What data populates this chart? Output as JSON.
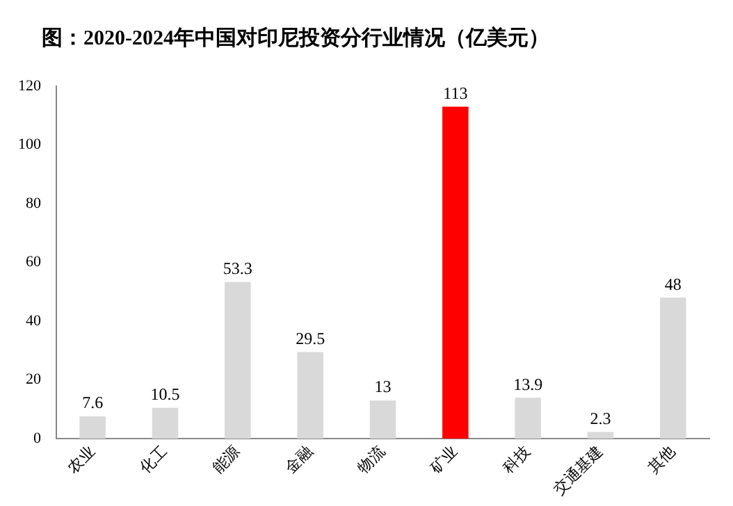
{
  "chart_data": {
    "type": "bar",
    "title": "图：2020-2024年中国对印尼投资分行业情况（亿美元）",
    "categories": [
      "农业",
      "化工",
      "能源",
      "金融",
      "物流",
      "矿业",
      "科技",
      "交通基建",
      "其他"
    ],
    "values": [
      7.6,
      10.5,
      53.3,
      29.5,
      13,
      113,
      13.9,
      2.3,
      48
    ],
    "colors": [
      "#d9d9d9",
      "#d9d9d9",
      "#d9d9d9",
      "#d9d9d9",
      "#d9d9d9",
      "#ff0000",
      "#d9d9d9",
      "#d9d9d9",
      "#d9d9d9"
    ],
    "ylim": [
      0,
      120
    ],
    "yticks": [
      0,
      20,
      40,
      60,
      80,
      100,
      120
    ],
    "grid": false,
    "legend": false,
    "data_labels": true
  }
}
